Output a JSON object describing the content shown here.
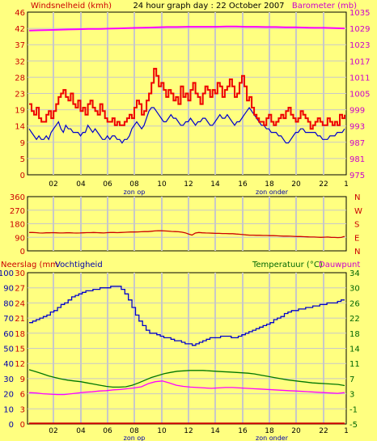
{
  "colors": {
    "background": "#ffff80",
    "plot_bg": "#ffff80",
    "grid": "#c8c8c8",
    "frame": "#000000",
    "tick_text": "#000000",
    "wind": "#0000cc",
    "gust": "#ee0000",
    "barometer": "#ff00ff",
    "direction": "#cc0000",
    "humidity": "#0000cc",
    "temperature": "#007700",
    "dewpoint": "#ff00ff",
    "rain": "#cc0000",
    "label_red": "#cc0000",
    "label_magenta": "#cc00cc",
    "label_blue": "#0000aa",
    "label_green": "#006600"
  },
  "header": {
    "left_label": "Windsnelheid (kmh)",
    "title": "24 hour graph day : 22 October 2007",
    "right_label": "Barometer (mb)"
  },
  "panel2": {
    "right_labels": [
      "N",
      "W",
      "S",
      "E",
      "N"
    ]
  },
  "panel3": {
    "left_label_a": "Neerslag (mm",
    "left_label_b": "Vochtigheid",
    "right_label_a": "Temperatuur (°C)",
    "right_label_b": "Dauwpunt"
  },
  "x_axis": {
    "ticks": [
      "02",
      "04",
      "06",
      "08",
      "10",
      "12",
      "14",
      "16",
      "18",
      "20",
      "22",
      "1"
    ],
    "sunrise_label": "zon op",
    "sunset_label": "zon onder"
  },
  "chart_data": [
    {
      "type": "line",
      "name": "wind",
      "ylim": [
        0,
        46
      ],
      "y2lim": [
        975,
        1035
      ],
      "left_ticks": [
        "46",
        "42",
        "37",
        "32",
        "28",
        "23",
        "19",
        "14",
        "9",
        "5",
        "0"
      ],
      "right_ticks": [
        "1035",
        "1029",
        "1023",
        "1017",
        "1011",
        "1005",
        "999",
        "993",
        "987",
        "981",
        "975"
      ],
      "series": [
        {
          "key": "wind_speed",
          "axis": "left",
          "style": "line",
          "values": [
            13,
            12,
            11,
            10,
            11,
            10,
            10,
            11,
            10,
            12,
            13,
            14,
            15,
            13,
            12,
            14,
            13,
            13,
            12,
            12,
            12,
            11,
            12,
            12,
            14,
            13,
            12,
            13,
            12,
            11,
            10,
            10,
            11,
            10,
            11,
            11,
            10,
            10,
            9,
            10,
            10,
            11,
            13,
            14,
            15,
            14,
            13,
            14,
            16,
            18,
            19,
            19,
            18,
            17,
            16,
            15,
            15,
            16,
            17,
            16,
            16,
            15,
            14,
            14,
            15,
            15,
            16,
            15,
            14,
            15,
            15,
            16,
            16,
            15,
            14,
            14,
            15,
            16,
            17,
            16,
            16,
            17,
            16,
            15,
            14,
            15,
            15,
            16,
            17,
            18,
            19,
            18,
            17,
            16,
            15,
            14,
            14,
            13,
            13,
            12,
            12,
            12,
            11,
            11,
            10,
            9,
            9,
            10,
            11,
            12,
            12,
            13,
            13,
            12,
            12,
            12,
            12,
            12,
            11,
            11,
            10,
            10,
            10,
            11,
            11,
            11,
            12,
            12,
            12,
            13
          ]
        },
        {
          "key": "wind_gust",
          "axis": "left",
          "style": "step",
          "values": [
            20,
            18,
            17,
            19,
            16,
            15,
            15,
            17,
            18,
            16,
            18,
            20,
            22,
            23,
            24,
            22,
            21,
            23,
            20,
            19,
            21,
            18,
            19,
            17,
            20,
            21,
            19,
            18,
            17,
            20,
            18,
            16,
            15,
            15,
            16,
            14,
            15,
            14,
            14,
            15,
            16,
            17,
            16,
            19,
            21,
            20,
            17,
            18,
            21,
            23,
            26,
            30,
            28,
            25,
            26,
            24,
            22,
            24,
            23,
            21,
            22,
            20,
            25,
            22,
            23,
            21,
            24,
            26,
            23,
            22,
            20,
            23,
            25,
            24,
            22,
            24,
            23,
            26,
            25,
            22,
            24,
            25,
            27,
            25,
            22,
            23,
            26,
            28,
            25,
            21,
            22,
            19,
            17,
            16,
            15,
            15,
            14,
            16,
            17,
            15,
            14,
            15,
            16,
            17,
            16,
            18,
            19,
            17,
            16,
            15,
            16,
            18,
            17,
            16,
            15,
            13,
            14,
            15,
            16,
            15,
            14,
            14,
            16,
            15,
            14,
            15,
            14,
            17,
            16,
            17
          ]
        },
        {
          "key": "barometer",
          "axis": "right",
          "style": "line",
          "values": [
            1028.2,
            1028.3,
            1028.4,
            1028.5,
            1028.6,
            1028.7,
            1028.8,
            1028.8,
            1028.9,
            1029,
            1029.1,
            1029.2,
            1029.3,
            1029.4,
            1029.5,
            1029.5,
            1029.6,
            1029.6,
            1029.6,
            1029.6,
            1029.7,
            1029.7,
            1029.6,
            1029.6,
            1029.5,
            1029.5,
            1029.4,
            1029.4,
            1029.3,
            1029.2,
            1029.2,
            1029.1,
            1029
          ]
        }
      ]
    },
    {
      "type": "line",
      "name": "direction",
      "ylim": [
        0,
        360
      ],
      "left_ticks": [
        "360",
        "270",
        "180",
        "90",
        "0"
      ],
      "series": [
        {
          "key": "wind_direction",
          "axis": "left",
          "style": "line",
          "values": [
            122,
            122,
            121,
            119,
            118,
            120,
            120,
            121,
            120,
            119,
            119,
            120,
            120,
            119,
            118,
            119,
            120,
            121,
            121,
            122,
            121,
            120,
            119,
            121,
            122,
            122,
            121,
            122,
            123,
            124,
            125,
            125,
            126,
            127,
            128,
            128,
            130,
            132,
            134,
            133,
            132,
            131,
            129,
            128,
            127,
            124,
            120,
            112,
            105,
            118,
            122,
            120,
            119,
            118,
            117,
            116,
            116,
            115,
            115,
            114,
            114,
            112,
            110,
            108,
            106,
            104,
            104,
            103,
            103,
            102,
            102,
            101,
            101,
            100,
            99,
            98,
            98,
            97,
            96,
            95,
            95,
            94,
            93,
            92,
            92,
            91,
            90,
            91,
            92,
            90,
            89,
            88,
            89,
            96
          ]
        }
      ]
    },
    {
      "type": "line",
      "name": "humidity-temperature",
      "ylim": [
        0,
        100
      ],
      "y2lim": [
        -5,
        34
      ],
      "left_ticks_outer": [
        "100",
        "90",
        "80",
        "70",
        "60",
        "50",
        "40",
        "30",
        "20",
        "10",
        "0"
      ],
      "left_ticks_inner": [
        "30",
        "27",
        "24",
        "21",
        "18",
        "15",
        "12",
        "9",
        "6",
        "3",
        "0"
      ],
      "right_ticks": [
        "34",
        "30",
        "26",
        "22",
        "18",
        "14",
        "11",
        "7",
        "3",
        "-1",
        "-5"
      ],
      "series": [
        {
          "key": "humidity",
          "axis": "left",
          "style": "step",
          "values": [
            67,
            68,
            69,
            70,
            71,
            72,
            74,
            75,
            77,
            79,
            80,
            82,
            84,
            85,
            86,
            87,
            88,
            88,
            89,
            89,
            90,
            90,
            90,
            91,
            91,
            91,
            89,
            86,
            82,
            77,
            72,
            68,
            65,
            62,
            60,
            60,
            59,
            58,
            57,
            57,
            56,
            55,
            55,
            54,
            53,
            53,
            52,
            53,
            54,
            55,
            56,
            57,
            57,
            57,
            58,
            58,
            58,
            57,
            57,
            58,
            59,
            60,
            61,
            62,
            63,
            64,
            65,
            66,
            67,
            69,
            70,
            71,
            73,
            74,
            75,
            75,
            76,
            76,
            77,
            77,
            78,
            78,
            79,
            79,
            80,
            80,
            80,
            81,
            82,
            82
          ]
        },
        {
          "key": "temperature",
          "axis": "right",
          "style": "line",
          "values": [
            9,
            8.5,
            8,
            7.4,
            7,
            6.6,
            6.3,
            6.1,
            5.9,
            5.6,
            5.3,
            5,
            4.7,
            4.5,
            4.5,
            4.6,
            5,
            5.6,
            6.3,
            7,
            7.5,
            8,
            8.3,
            8.6,
            8.7,
            8.8,
            8.8,
            8.8,
            8.7,
            8.6,
            8.5,
            8.4,
            8.3,
            8.2,
            8.1,
            7.9,
            7.6,
            7.3,
            7,
            6.7,
            6.4,
            6.2,
            6,
            5.8,
            5.6,
            5.5,
            5.4,
            5.3,
            5.2,
            4.9
          ]
        },
        {
          "key": "dewpoint",
          "axis": "right",
          "style": "line",
          "values": [
            3.1,
            3,
            2.8,
            2.7,
            2.6,
            2.6,
            2.8,
            3,
            3.2,
            3.3,
            3.5,
            3.6,
            3.8,
            3.9,
            4.1,
            4.3,
            4.6,
            5.4,
            5.9,
            6.1,
            5.6,
            5,
            4.7,
            4.5,
            4.4,
            4.3,
            4.2,
            4.3,
            4.4,
            4.4,
            4.3,
            4.2,
            4.1,
            4,
            3.9,
            3.8,
            3.7,
            3.6,
            3.5,
            3.4,
            3.3,
            3.2,
            3.1,
            3,
            2.9,
            3.1
          ]
        },
        {
          "key": "rain",
          "axis": "left",
          "style": "line",
          "values": [
            0.4,
            0.4
          ]
        }
      ]
    }
  ]
}
